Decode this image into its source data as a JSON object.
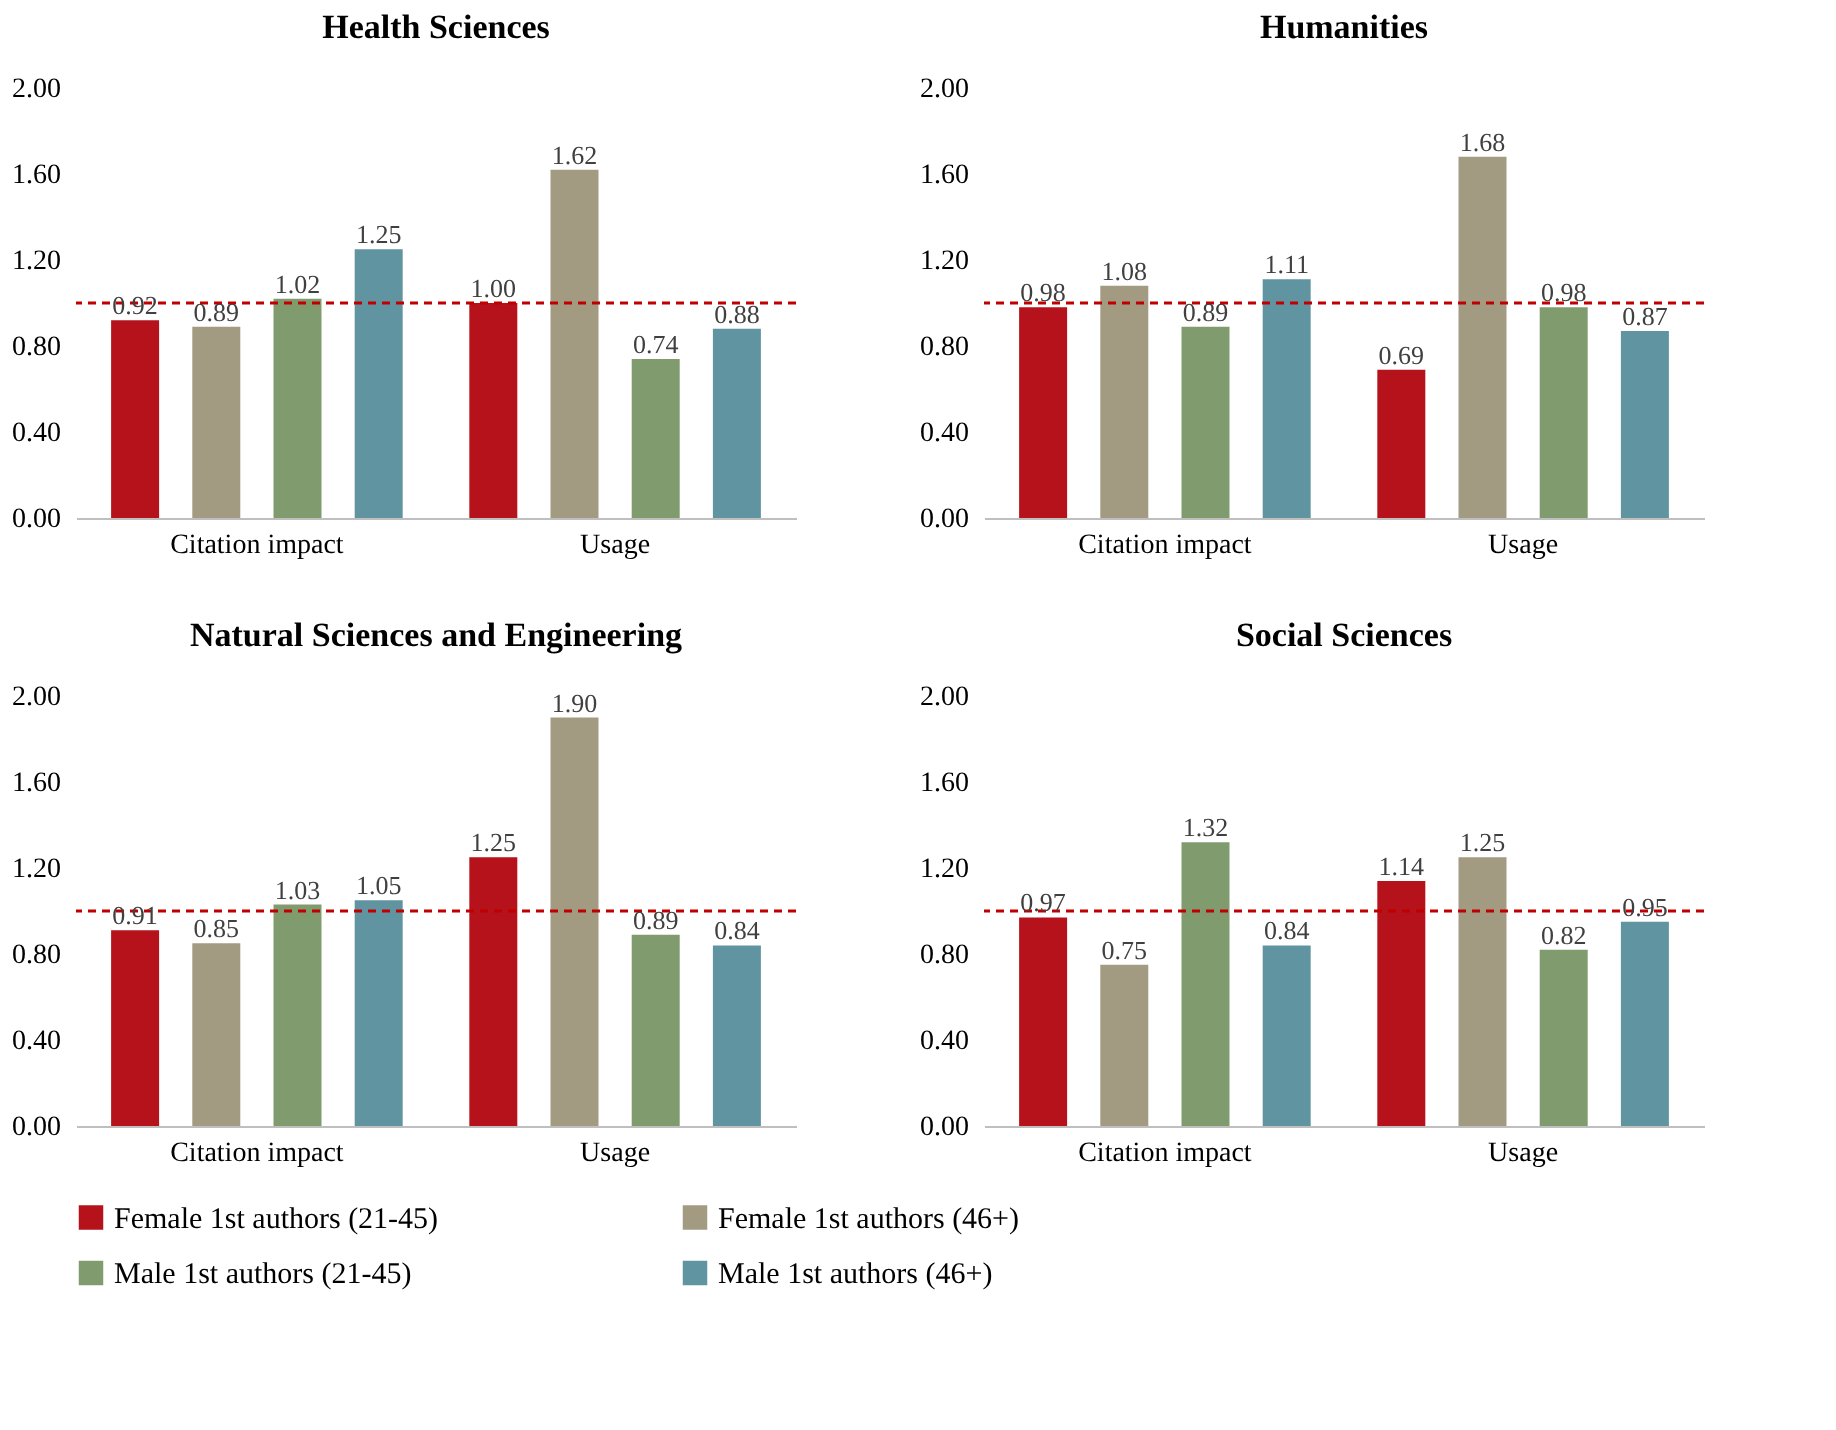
{
  "chart_data": [
    {
      "type": "bar",
      "title": "Health Sciences",
      "categories": [
        "Citation impact",
        "Usage"
      ],
      "ylim": [
        0,
        2
      ],
      "yticks": [
        {
          "value": 0,
          "label": "0.00"
        },
        {
          "value": 0.4,
          "label": "0.40"
        },
        {
          "value": 0.8,
          "label": "0.80"
        },
        {
          "value": 1.2,
          "label": "1.20"
        },
        {
          "value": 1.6,
          "label": "1.60"
        },
        {
          "value": 2,
          "label": "2.00"
        }
      ],
      "grid": false,
      "legend": "bottom",
      "ref_lines": [
        {
          "axis": "y",
          "value": 1,
          "color": "#c00000",
          "line_style": "dashed"
        }
      ],
      "series": [
        {
          "name": "Female 1st authors (21-45)",
          "color": "#b5121b",
          "values": [
            0.92,
            1.0
          ],
          "value_labels": [
            "0.92",
            "1.00"
          ]
        },
        {
          "name": "Female 1st authors (46+)",
          "color": "#a39a82",
          "values": [
            0.89,
            1.62
          ],
          "value_labels": [
            "0.89",
            "1.62"
          ]
        },
        {
          "name": "Male 1st authors (21-45)",
          "color": "#809c6f",
          "values": [
            1.02,
            0.74
          ],
          "value_labels": [
            "1.02",
            "0.74"
          ]
        },
        {
          "name": "Male 1st authors (46+)",
          "color": "#6194a1",
          "values": [
            1.25,
            0.88
          ],
          "value_labels": [
            "1.25",
            "0.88"
          ]
        }
      ]
    },
    {
      "type": "bar",
      "title": "Humanities",
      "categories": [
        "Citation impact",
        "Usage"
      ],
      "ylim": [
        0,
        2
      ],
      "yticks": [
        {
          "value": 0,
          "label": "0.00"
        },
        {
          "value": 0.4,
          "label": "0.40"
        },
        {
          "value": 0.8,
          "label": "0.80"
        },
        {
          "value": 1.2,
          "label": "1.20"
        },
        {
          "value": 1.6,
          "label": "1.60"
        },
        {
          "value": 2,
          "label": "2.00"
        }
      ],
      "grid": false,
      "legend": "bottom",
      "ref_lines": [
        {
          "axis": "y",
          "value": 1,
          "color": "#c00000",
          "line_style": "dashed"
        }
      ],
      "series": [
        {
          "name": "Female 1st authors (21-45)",
          "color": "#b5121b",
          "values": [
            0.98,
            0.69
          ],
          "value_labels": [
            "0.98",
            "0.69"
          ]
        },
        {
          "name": "Female 1st authors (46+)",
          "color": "#a39a82",
          "values": [
            1.08,
            1.68
          ],
          "value_labels": [
            "1.08",
            "1.68"
          ]
        },
        {
          "name": "Male 1st authors (21-45)",
          "color": "#809c6f",
          "values": [
            0.89,
            0.98
          ],
          "value_labels": [
            "0.89",
            "0.98"
          ]
        },
        {
          "name": "Male 1st authors (46+)",
          "color": "#6194a1",
          "values": [
            1.11,
            0.87
          ],
          "value_labels": [
            "1.11",
            "0.87"
          ]
        }
      ]
    },
    {
      "type": "bar",
      "title": "Natural Sciences and Engineering",
      "categories": [
        "Citation impact",
        "Usage"
      ],
      "ylim": [
        0,
        2
      ],
      "yticks": [
        {
          "value": 0,
          "label": "0.00"
        },
        {
          "value": 0.4,
          "label": "0.40"
        },
        {
          "value": 0.8,
          "label": "0.80"
        },
        {
          "value": 1.2,
          "label": "1.20"
        },
        {
          "value": 1.6,
          "label": "1.60"
        },
        {
          "value": 2,
          "label": "2.00"
        }
      ],
      "grid": false,
      "legend": "bottom",
      "ref_lines": [
        {
          "axis": "y",
          "value": 1,
          "color": "#c00000",
          "line_style": "dashed"
        }
      ],
      "series": [
        {
          "name": "Female 1st authors (21-45)",
          "color": "#b5121b",
          "values": [
            0.91,
            1.25
          ],
          "value_labels": [
            "0.91",
            "1.25"
          ]
        },
        {
          "name": "Female 1st authors (46+)",
          "color": "#a39a82",
          "values": [
            0.85,
            1.9
          ],
          "value_labels": [
            "0.85",
            "1.90"
          ]
        },
        {
          "name": "Male 1st authors (21-45)",
          "color": "#809c6f",
          "values": [
            1.03,
            0.89
          ],
          "value_labels": [
            "1.03",
            "0.89"
          ]
        },
        {
          "name": "Male 1st authors (46+)",
          "color": "#6194a1",
          "values": [
            1.05,
            0.84
          ],
          "value_labels": [
            "1.05",
            "0.84"
          ]
        }
      ]
    },
    {
      "type": "bar",
      "title": "Social Sciences",
      "categories": [
        "Citation impact",
        "Usage"
      ],
      "ylim": [
        0,
        2
      ],
      "yticks": [
        {
          "value": 0,
          "label": "0.00"
        },
        {
          "value": 0.4,
          "label": "0.40"
        },
        {
          "value": 0.8,
          "label": "0.80"
        },
        {
          "value": 1.2,
          "label": "1.20"
        },
        {
          "value": 1.6,
          "label": "1.60"
        },
        {
          "value": 2,
          "label": "2.00"
        }
      ],
      "grid": false,
      "legend": "bottom",
      "ref_lines": [
        {
          "axis": "y",
          "value": 1,
          "color": "#c00000",
          "line_style": "dashed"
        }
      ],
      "series": [
        {
          "name": "Female 1st authors (21-45)",
          "color": "#b5121b",
          "values": [
            0.97,
            1.14
          ],
          "value_labels": [
            "0.97",
            "1.14"
          ]
        },
        {
          "name": "Female 1st authors (46+)",
          "color": "#a39a82",
          "values": [
            0.75,
            1.25
          ],
          "value_labels": [
            "0.75",
            "1.25"
          ]
        },
        {
          "name": "Male 1st authors (21-45)",
          "color": "#809c6f",
          "values": [
            1.32,
            0.82
          ],
          "value_labels": [
            "1.32",
            "0.82"
          ]
        },
        {
          "name": "Male 1st authors (46+)",
          "color": "#6194a1",
          "values": [
            0.84,
            0.95
          ],
          "value_labels": [
            "0.84",
            "0.95"
          ]
        }
      ]
    }
  ]
}
